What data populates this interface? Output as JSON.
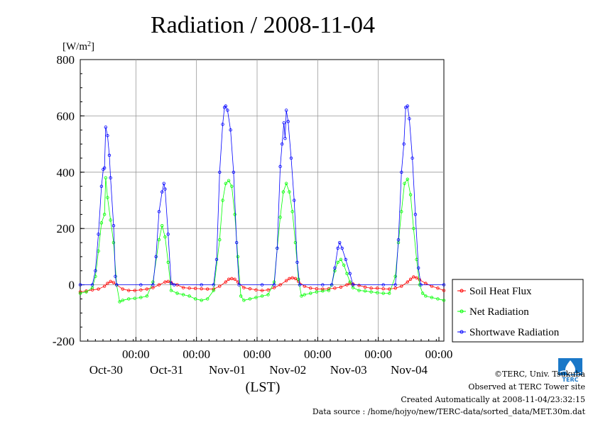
{
  "chart_data": {
    "type": "line",
    "title": "Radiation / 2008-11-04",
    "ylabel_unit_prefix": "[W/m",
    "ylabel_unit_sup": "2",
    "ylabel_unit_suffix": "]",
    "xlabel": "(LST)",
    "ylim": [
      -200,
      800
    ],
    "yticks": [
      -200,
      0,
      200,
      400,
      600,
      800
    ],
    "xlim": [
      0,
      6
    ],
    "xticks": [
      {
        "x": 1,
        "time": "00:00",
        "date": "Oct-30"
      },
      {
        "x": 2,
        "time": "00:00",
        "date": "Oct-31"
      },
      {
        "x": 3,
        "time": "00:00",
        "date": "Nov-01"
      },
      {
        "x": 4,
        "time": "00:00",
        "date": "Nov-02"
      },
      {
        "x": 5,
        "time": "00:00",
        "date": "Nov-03"
      },
      {
        "x": 6,
        "time": "00:00",
        "date": "Nov-04"
      }
    ],
    "grid": true,
    "legend_position": "right",
    "series": [
      {
        "name": "Soil Heat Flux",
        "color": "#ff0000",
        "points": [
          [
            0.0,
            -25
          ],
          [
            0.1,
            -22
          ],
          [
            0.2,
            -18
          ],
          [
            0.3,
            -15
          ],
          [
            0.4,
            -5
          ],
          [
            0.45,
            5
          ],
          [
            0.5,
            12
          ],
          [
            0.55,
            8
          ],
          [
            0.6,
            0
          ],
          [
            0.7,
            -15
          ],
          [
            0.8,
            -20
          ],
          [
            0.9,
            -20
          ],
          [
            1.0,
            -18
          ],
          [
            1.1,
            -15
          ],
          [
            1.2,
            -10
          ],
          [
            1.3,
            0
          ],
          [
            1.4,
            10
          ],
          [
            1.45,
            12
          ],
          [
            1.5,
            8
          ],
          [
            1.6,
            0
          ],
          [
            1.7,
            -10
          ],
          [
            1.8,
            -12
          ],
          [
            1.9,
            -13
          ],
          [
            2.0,
            -14
          ],
          [
            2.1,
            -15
          ],
          [
            2.2,
            -15
          ],
          [
            2.3,
            -5
          ],
          [
            2.4,
            10
          ],
          [
            2.45,
            20
          ],
          [
            2.5,
            22
          ],
          [
            2.55,
            20
          ],
          [
            2.6,
            10
          ],
          [
            2.7,
            -10
          ],
          [
            2.8,
            -14
          ],
          [
            2.9,
            -18
          ],
          [
            3.0,
            -20
          ],
          [
            3.1,
            -18
          ],
          [
            3.2,
            -10
          ],
          [
            3.3,
            0
          ],
          [
            3.4,
            15
          ],
          [
            3.45,
            22
          ],
          [
            3.5,
            25
          ],
          [
            3.55,
            22
          ],
          [
            3.6,
            12
          ],
          [
            3.7,
            -5
          ],
          [
            3.8,
            -12
          ],
          [
            3.9,
            -14
          ],
          [
            4.0,
            -15
          ],
          [
            4.1,
            -14
          ],
          [
            4.2,
            -12
          ],
          [
            4.3,
            -8
          ],
          [
            4.4,
            0
          ],
          [
            4.45,
            5
          ],
          [
            4.5,
            3
          ],
          [
            4.6,
            -2
          ],
          [
            4.7,
            -8
          ],
          [
            4.8,
            -12
          ],
          [
            4.9,
            -12
          ],
          [
            5.0,
            -14
          ],
          [
            5.1,
            -15
          ],
          [
            5.2,
            -12
          ],
          [
            5.3,
            -5
          ],
          [
            5.4,
            10
          ],
          [
            5.45,
            20
          ],
          [
            5.5,
            28
          ],
          [
            5.55,
            25
          ],
          [
            5.6,
            18
          ],
          [
            5.7,
            5
          ],
          [
            5.8,
            -5
          ],
          [
            5.9,
            -12
          ],
          [
            6.0,
            -20
          ]
        ]
      },
      {
        "name": "Net Radiation",
        "color": "#00ff00",
        "points": [
          [
            0.0,
            -30
          ],
          [
            0.1,
            -25
          ],
          [
            0.2,
            -10
          ],
          [
            0.25,
            30
          ],
          [
            0.3,
            120
          ],
          [
            0.35,
            220
          ],
          [
            0.4,
            250
          ],
          [
            0.42,
            380
          ],
          [
            0.45,
            310
          ],
          [
            0.5,
            230
          ],
          [
            0.55,
            150
          ],
          [
            0.6,
            0
          ],
          [
            0.65,
            -60
          ],
          [
            0.7,
            -55
          ],
          [
            0.8,
            -50
          ],
          [
            0.9,
            -48
          ],
          [
            1.0,
            -45
          ],
          [
            1.1,
            -40
          ],
          [
            1.2,
            10
          ],
          [
            1.3,
            160
          ],
          [
            1.35,
            210
          ],
          [
            1.4,
            170
          ],
          [
            1.45,
            80
          ],
          [
            1.5,
            -20
          ],
          [
            1.6,
            -30
          ],
          [
            1.7,
            -35
          ],
          [
            1.8,
            -40
          ],
          [
            1.9,
            -50
          ],
          [
            2.0,
            -55
          ],
          [
            2.1,
            -50
          ],
          [
            2.2,
            -20
          ],
          [
            2.3,
            160
          ],
          [
            2.35,
            300
          ],
          [
            2.4,
            360
          ],
          [
            2.45,
            370
          ],
          [
            2.5,
            350
          ],
          [
            2.55,
            250
          ],
          [
            2.6,
            100
          ],
          [
            2.65,
            -40
          ],
          [
            2.7,
            -55
          ],
          [
            2.8,
            -50
          ],
          [
            2.9,
            -45
          ],
          [
            3.0,
            -40
          ],
          [
            3.1,
            -35
          ],
          [
            3.2,
            10
          ],
          [
            3.25,
            130
          ],
          [
            3.3,
            240
          ],
          [
            3.35,
            330
          ],
          [
            3.4,
            360
          ],
          [
            3.45,
            330
          ],
          [
            3.5,
            260
          ],
          [
            3.55,
            150
          ],
          [
            3.6,
            20
          ],
          [
            3.65,
            -40
          ],
          [
            3.7,
            -35
          ],
          [
            3.8,
            -30
          ],
          [
            3.9,
            -25
          ],
          [
            4.0,
            -22
          ],
          [
            4.1,
            -20
          ],
          [
            4.15,
            0
          ],
          [
            4.2,
            50
          ],
          [
            4.25,
            80
          ],
          [
            4.3,
            90
          ],
          [
            4.35,
            70
          ],
          [
            4.4,
            40
          ],
          [
            4.45,
            10
          ],
          [
            4.5,
            -10
          ],
          [
            4.6,
            -20
          ],
          [
            4.7,
            -22
          ],
          [
            4.8,
            -25
          ],
          [
            4.9,
            -28
          ],
          [
            5.0,
            -30
          ],
          [
            5.1,
            -30
          ],
          [
            5.2,
            30
          ],
          [
            5.25,
            150
          ],
          [
            5.3,
            260
          ],
          [
            5.35,
            360
          ],
          [
            5.4,
            375
          ],
          [
            5.45,
            320
          ],
          [
            5.5,
            200
          ],
          [
            5.55,
            90
          ],
          [
            5.6,
            0
          ],
          [
            5.65,
            -30
          ],
          [
            5.7,
            -40
          ],
          [
            5.8,
            -45
          ],
          [
            5.9,
            -50
          ],
          [
            6.0,
            -55
          ]
        ]
      },
      {
        "name": "Shortwave Radiation",
        "color": "#0000ff",
        "points": [
          [
            0.0,
            0
          ],
          [
            0.2,
            0
          ],
          [
            0.25,
            50
          ],
          [
            0.3,
            180
          ],
          [
            0.35,
            350
          ],
          [
            0.38,
            410
          ],
          [
            0.4,
            415
          ],
          [
            0.42,
            560
          ],
          [
            0.45,
            530
          ],
          [
            0.48,
            460
          ],
          [
            0.5,
            380
          ],
          [
            0.55,
            210
          ],
          [
            0.58,
            30
          ],
          [
            0.6,
            0
          ],
          [
            1.0,
            0
          ],
          [
            1.2,
            0
          ],
          [
            1.25,
            100
          ],
          [
            1.3,
            260
          ],
          [
            1.35,
            330
          ],
          [
            1.38,
            360
          ],
          [
            1.4,
            340
          ],
          [
            1.45,
            180
          ],
          [
            1.5,
            5
          ],
          [
            1.55,
            0
          ],
          [
            2.0,
            0
          ],
          [
            2.2,
            0
          ],
          [
            2.25,
            90
          ],
          [
            2.3,
            400
          ],
          [
            2.35,
            570
          ],
          [
            2.38,
            630
          ],
          [
            2.4,
            635
          ],
          [
            2.43,
            620
          ],
          [
            2.48,
            550
          ],
          [
            2.53,
            400
          ],
          [
            2.58,
            150
          ],
          [
            2.62,
            0
          ],
          [
            3.0,
            0
          ],
          [
            3.2,
            0
          ],
          [
            3.25,
            130
          ],
          [
            3.3,
            420
          ],
          [
            3.33,
            500
          ],
          [
            3.36,
            575
          ],
          [
            3.38,
            520
          ],
          [
            3.4,
            620
          ],
          [
            3.43,
            580
          ],
          [
            3.48,
            450
          ],
          [
            3.53,
            300
          ],
          [
            3.58,
            80
          ],
          [
            3.62,
            0
          ],
          [
            4.0,
            0
          ],
          [
            4.15,
            0
          ],
          [
            4.2,
            60
          ],
          [
            4.25,
            130
          ],
          [
            4.28,
            150
          ],
          [
            4.32,
            130
          ],
          [
            4.38,
            90
          ],
          [
            4.45,
            40
          ],
          [
            4.5,
            0
          ],
          [
            5.0,
            0
          ],
          [
            5.2,
            0
          ],
          [
            5.25,
            160
          ],
          [
            5.3,
            400
          ],
          [
            5.34,
            500
          ],
          [
            5.37,
            630
          ],
          [
            5.4,
            635
          ],
          [
            5.43,
            590
          ],
          [
            5.48,
            450
          ],
          [
            5.53,
            250
          ],
          [
            5.58,
            60
          ],
          [
            5.62,
            0
          ],
          [
            6.0,
            0
          ]
        ]
      }
    ]
  },
  "credits": {
    "copyright": "©TERC, Univ. Tsukuba",
    "site": "Observed at TERC Tower site",
    "created": "Created Automatically at 2008-11-04/23:32:15",
    "source": "Data source : /home/hojyo/new/TERC-data/sorted_data/MET.30m.dat"
  },
  "logo": {
    "text": "TERC",
    "color": "#1a78c8"
  }
}
